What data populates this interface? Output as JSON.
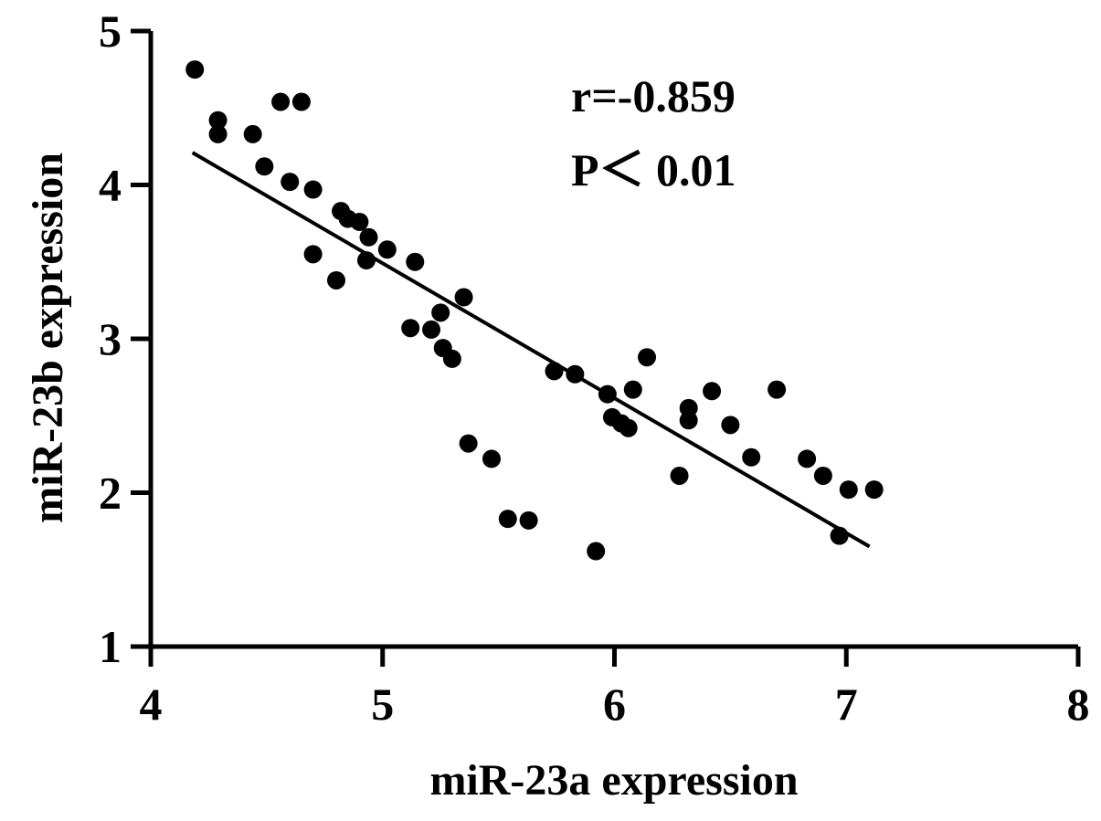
{
  "chart_data": {
    "type": "scatter",
    "title": "",
    "xlabel": "miR-23a expression",
    "ylabel": "miR-23b expression",
    "xlim": [
      4,
      8
    ],
    "ylim": [
      1,
      5
    ],
    "xticks": [
      "4",
      "5",
      "6",
      "7",
      "8"
    ],
    "yticks": [
      "1",
      "2",
      "3",
      "4",
      "5"
    ],
    "grid": false,
    "annotations": [
      "r=-0.859",
      "P＜ 0.01"
    ],
    "series": [
      {
        "points": [
          [
            4.19,
            4.75
          ],
          [
            4.29,
            4.42
          ],
          [
            4.29,
            4.33
          ],
          [
            4.44,
            4.33
          ],
          [
            4.49,
            4.12
          ],
          [
            4.56,
            4.54
          ],
          [
            4.6,
            4.02
          ],
          [
            4.65,
            4.54
          ],
          [
            4.7,
            3.97
          ],
          [
            4.7,
            3.55
          ],
          [
            4.8,
            3.38
          ],
          [
            4.82,
            3.83
          ],
          [
            4.85,
            3.78
          ],
          [
            4.9,
            3.76
          ],
          [
            4.93,
            3.51
          ],
          [
            4.94,
            3.66
          ],
          [
            5.02,
            3.58
          ],
          [
            5.12,
            3.07
          ],
          [
            5.14,
            3.5
          ],
          [
            5.21,
            3.06
          ],
          [
            5.25,
            3.17
          ],
          [
            5.26,
            2.94
          ],
          [
            5.3,
            2.87
          ],
          [
            5.35,
            3.27
          ],
          [
            5.37,
            2.32
          ],
          [
            5.47,
            2.22
          ],
          [
            5.54,
            1.83
          ],
          [
            5.63,
            1.82
          ],
          [
            5.74,
            2.79
          ],
          [
            5.83,
            2.77
          ],
          [
            5.92,
            1.62
          ],
          [
            5.97,
            2.64
          ],
          [
            5.99,
            2.49
          ],
          [
            6.03,
            2.45
          ],
          [
            6.06,
            2.42
          ],
          [
            6.08,
            2.67
          ],
          [
            6.14,
            2.88
          ],
          [
            6.28,
            2.11
          ],
          [
            6.32,
            2.55
          ],
          [
            6.32,
            2.47
          ],
          [
            6.42,
            2.66
          ],
          [
            6.5,
            2.44
          ],
          [
            6.59,
            2.23
          ],
          [
            6.7,
            2.67
          ],
          [
            6.83,
            2.22
          ],
          [
            6.9,
            2.11
          ],
          [
            6.97,
            1.72
          ],
          [
            7.01,
            2.02
          ],
          [
            7.12,
            2.02
          ]
        ]
      }
    ],
    "fit_line": {
      "x": [
        4.18,
        7.1
      ],
      "y": [
        4.21,
        1.65
      ]
    }
  }
}
